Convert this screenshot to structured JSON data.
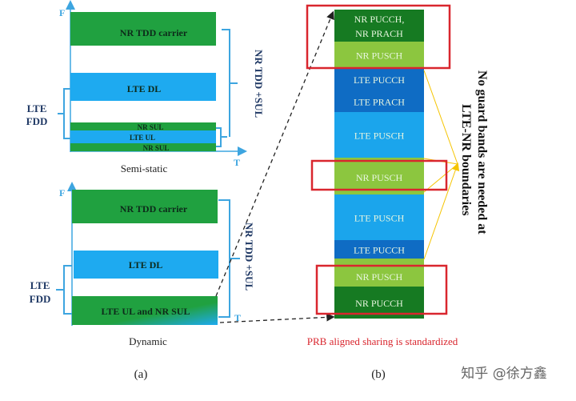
{
  "colors": {
    "nr_green": "#20a140",
    "lte_blue": "#1eaaf0",
    "nr_dark": "#167a22",
    "nr_light": "#8cc63f",
    "lte_dark": "#0f6cc4",
    "lte_light": "#1ba5ec",
    "highlight_red": "#d9262e",
    "arrow_yellow": "#f5c400",
    "axis_blue": "#3da5e0"
  },
  "panel_a": {
    "semi_static": {
      "axis_f": "F",
      "axis_t": "T",
      "nr_tdd_carrier": "NR TDD carrier",
      "lte_dl": "LTE DL",
      "nr_sul_top": "NR SUL",
      "lte_ul": "LTE UL",
      "nr_sul_bottom": "NR SUL",
      "lte_fdd_line1": "LTE",
      "lte_fdd_line2": "FDD",
      "nr_tdd_sul": "NR TDD +SUL",
      "caption": "Semi-static"
    },
    "dynamic": {
      "axis_f": "F",
      "axis_t": "T",
      "nr_tdd_carrier": "NR TDD carrier",
      "lte_dl": "LTE DL",
      "lte_ul_nr_sul": "LTE UL and NR SUL",
      "lte_fdd_line1": "LTE",
      "lte_fdd_line2": "FDD",
      "nr_tdd_sul": "NR TDD +SUL",
      "caption": "Dynamic"
    },
    "label": "(a)"
  },
  "panel_b": {
    "segments": [
      {
        "line1": "NR PUCCH,",
        "line2": "NR PRACH",
        "type": "nr_dark"
      },
      {
        "line1": "NR PUSCH",
        "type": "nr_light"
      },
      {
        "line1": "LTE PUCCH",
        "type": "lte_dark"
      },
      {
        "line1": "LTE PRACH",
        "type": "lte_dark"
      },
      {
        "line1": "LTE PUSCH",
        "type": "lte_light"
      },
      {
        "line1": "NR PUSCH",
        "type": "nr_light"
      },
      {
        "line1": "LTE PUSCH",
        "type": "lte_light"
      },
      {
        "line1": "LTE PUCCH",
        "type": "lte_dark"
      },
      {
        "line1": "NR PUSCH",
        "type": "nr_light"
      },
      {
        "line1": "NR PUCCH",
        "type": "nr_dark"
      }
    ],
    "note_line1": "No guard bands are needed at",
    "note_line2": "LTE-NR boundaries",
    "caption": "PRB aligned sharing is standardized",
    "label": "(b)"
  },
  "watermark": "知乎 @徐方鑫"
}
